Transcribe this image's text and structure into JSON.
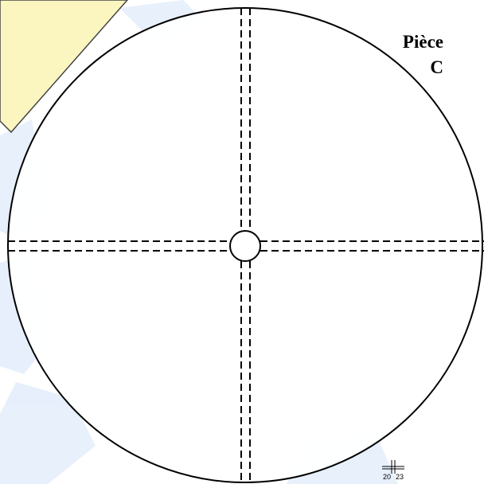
{
  "label": {
    "line1": "Pièce",
    "line2": "C"
  },
  "logo": {
    "left": "20",
    "right": "23"
  }
}
